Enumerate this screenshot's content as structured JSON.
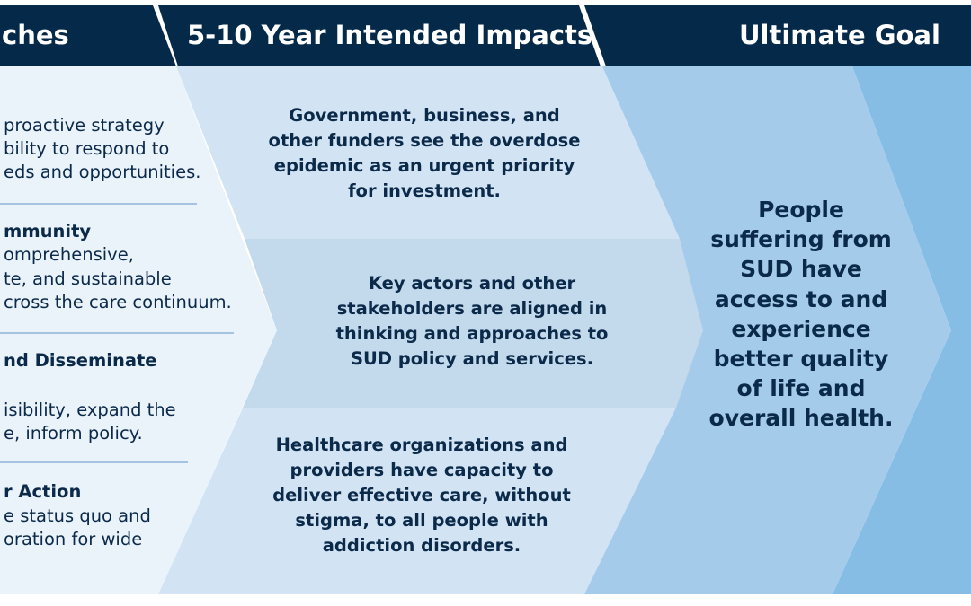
{
  "headers": {
    "left": "ches",
    "middle": "5-10 Year Intended Impacts",
    "right": "Ultimate Goal"
  },
  "approaches": [
    {
      "lines": [
        "proactive strategy",
        "bility to respond to",
        "eds and opportunities."
      ]
    },
    {
      "title": "mmunity",
      "lines": [
        "omprehensive,",
        "te, and sustainable",
        "cross the care continuum."
      ]
    },
    {
      "title": "nd Disseminate",
      "lines": [
        "isibility, expand the",
        "e, inform policy."
      ]
    },
    {
      "title": "r Action",
      "lines": [
        "e status quo and",
        "oration for wide"
      ]
    }
  ],
  "impacts": [
    "Government, business, and\nother funders see the overdose\nepidemic as an urgent priority\nfor investment.",
    "Key actors and other\nstakeholders are aligned in\nthinking and approaches to\nSUD policy and services.",
    "Healthcare organizations and\nproviders have capacity to\ndeliver effective care, without\nstigma, to all people with\naddiction disorders."
  ],
  "goal": "People\nsuffering from\nSUD have\naccess to and\nexperience\nbetter quality\nof life and\noverall health.",
  "colors": {
    "header_bg": "#052a49",
    "left_bg": "#eaf2fa",
    "middle_band_1": "#d2e4f4",
    "middle_band_2": "#c3d9ec",
    "middle_band_3": "#d2e4f4",
    "goal_bg": "#a4cbea",
    "far_right_bg": "#86bde5",
    "text": "#0b2a4a",
    "divider": "#8fb5da"
  }
}
